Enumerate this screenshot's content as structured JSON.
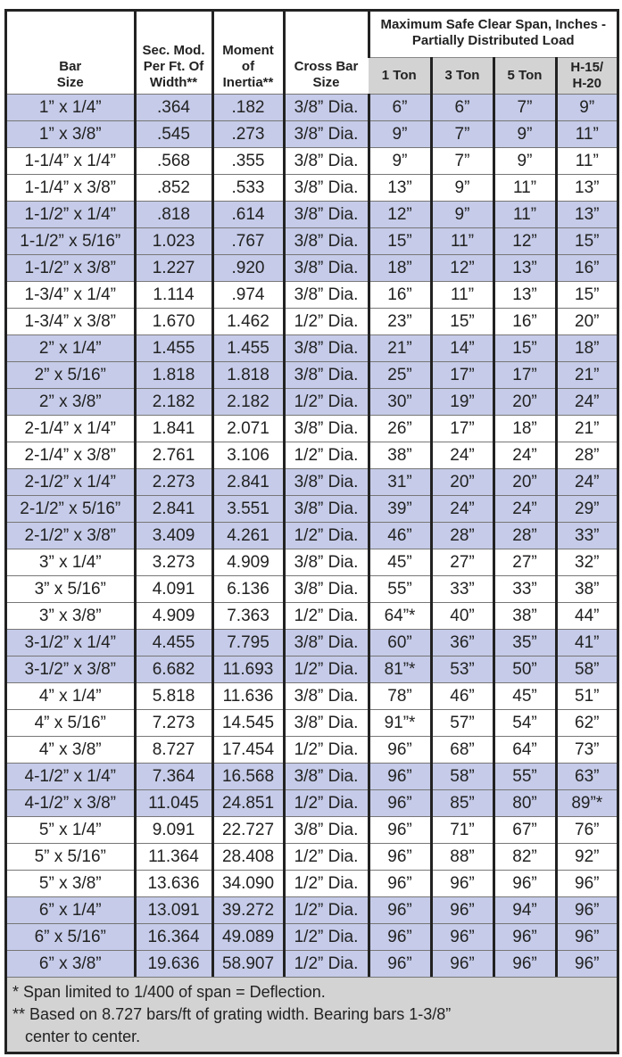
{
  "header": {
    "bar_size": "Bar Size",
    "sec_mod": "Sec. Mod. Per Ft. Of Width**",
    "moment": "Moment of Inertia**",
    "cross_bar": "Cross Bar Size",
    "span_group": "Maximum Safe Clear Span, Inches - Partially Distributed Load",
    "loads": [
      "1 Ton",
      "3 Ton",
      "5 Ton",
      "H-15/ H-20"
    ]
  },
  "shade_color": "#c5cbe8",
  "rows": [
    {
      "s": 1,
      "c": [
        "1” x 1/4”",
        ".364",
        ".182",
        "3/8” Dia.",
        "6”",
        "6”",
        "7”",
        "9”"
      ]
    },
    {
      "s": 1,
      "c": [
        "1” x 3/8”",
        ".545",
        ".273",
        "3/8” Dia.",
        "9”",
        "7”",
        "9”",
        "11”"
      ]
    },
    {
      "s": 0,
      "c": [
        "1-1/4” x 1/4”",
        ".568",
        ".355",
        "3/8” Dia.",
        "9”",
        "7”",
        "9”",
        "11”"
      ]
    },
    {
      "s": 0,
      "c": [
        "1-1/4” x 3/8”",
        ".852",
        ".533",
        "3/8” Dia.",
        "13”",
        "9”",
        "11”",
        "13”"
      ]
    },
    {
      "s": 1,
      "c": [
        "1-1/2” x 1/4”",
        ".818",
        ".614",
        "3/8” Dia.",
        "12”",
        "9”",
        "11”",
        "13”"
      ]
    },
    {
      "s": 1,
      "c": [
        "1-1/2” x 5/16”",
        "1.023",
        ".767",
        "3/8” Dia.",
        "15”",
        "11”",
        "12”",
        "15”"
      ]
    },
    {
      "s": 1,
      "c": [
        "1-1/2” x 3/8”",
        "1.227",
        ".920",
        "3/8” Dia.",
        "18”",
        "12”",
        "13”",
        "16”"
      ]
    },
    {
      "s": 0,
      "c": [
        "1-3/4” x 1/4”",
        "1.114",
        ".974",
        "3/8” Dia.",
        "16”",
        "11”",
        "13”",
        "15”"
      ]
    },
    {
      "s": 0,
      "c": [
        "1-3/4” x 3/8”",
        "1.670",
        "1.462",
        "1/2” Dia.",
        "23”",
        "15”",
        "16”",
        "20”"
      ]
    },
    {
      "s": 1,
      "c": [
        "2” x 1/4”",
        "1.455",
        "1.455",
        "3/8” Dia.",
        "21”",
        "14”",
        "15”",
        "18”"
      ]
    },
    {
      "s": 1,
      "c": [
        "2” x 5/16”",
        "1.818",
        "1.818",
        "3/8” Dia.",
        "25”",
        "17”",
        "17”",
        "21”"
      ]
    },
    {
      "s": 1,
      "c": [
        "2” x 3/8”",
        "2.182",
        "2.182",
        "1/2” Dia.",
        "30”",
        "19”",
        "20”",
        "24”"
      ]
    },
    {
      "s": 0,
      "c": [
        "2-1/4” x 1/4”",
        "1.841",
        "2.071",
        "3/8” Dia.",
        "26”",
        "17”",
        "18”",
        "21”"
      ]
    },
    {
      "s": 0,
      "c": [
        "2-1/4” x 3/8”",
        "2.761",
        "3.106",
        "1/2” Dia.",
        "38”",
        "24”",
        "24”",
        "28”"
      ]
    },
    {
      "s": 1,
      "c": [
        "2-1/2” x 1/4”",
        "2.273",
        "2.841",
        "3/8” Dia.",
        "31”",
        "20”",
        "20”",
        "24”"
      ]
    },
    {
      "s": 1,
      "c": [
        "2-1/2” x 5/16”",
        "2.841",
        "3.551",
        "3/8” Dia.",
        "39”",
        "24”",
        "24”",
        "29”"
      ]
    },
    {
      "s": 1,
      "c": [
        "2-1/2” x 3/8”",
        "3.409",
        "4.261",
        "1/2” Dia.",
        "46”",
        "28”",
        "28”",
        "33”"
      ]
    },
    {
      "s": 0,
      "c": [
        "3” x 1/4”",
        "3.273",
        "4.909",
        "3/8” Dia.",
        "45”",
        "27”",
        "27”",
        "32”"
      ]
    },
    {
      "s": 0,
      "c": [
        "3” x 5/16”",
        "4.091",
        "6.136",
        "3/8” Dia.",
        "55”",
        "33”",
        "33”",
        "38”"
      ]
    },
    {
      "s": 0,
      "c": [
        "3” x 3/8”",
        "4.909",
        "7.363",
        "1/2” Dia.",
        "64”*",
        "40”",
        "38”",
        "44”"
      ]
    },
    {
      "s": 1,
      "c": [
        "3-1/2” x 1/4”",
        "4.455",
        "7.795",
        "3/8” Dia.",
        "60”",
        "36”",
        "35”",
        "41”"
      ]
    },
    {
      "s": 1,
      "c": [
        "3-1/2” x 3/8”",
        "6.682",
        "11.693",
        "1/2” Dia.",
        "81”*",
        "53”",
        "50”",
        "58”"
      ]
    },
    {
      "s": 0,
      "c": [
        "4” x 1/4”",
        "5.818",
        "11.636",
        "3/8” Dia.",
        "78”",
        "46”",
        "45”",
        "51”"
      ]
    },
    {
      "s": 0,
      "c": [
        "4” x 5/16”",
        "7.273",
        "14.545",
        "3/8” Dia.",
        "91”*",
        "57”",
        "54”",
        "62”"
      ]
    },
    {
      "s": 0,
      "c": [
        "4” x 3/8”",
        "8.727",
        "17.454",
        "1/2” Dia.",
        "96”",
        "68”",
        "64”",
        "73”"
      ]
    },
    {
      "s": 1,
      "c": [
        "4-1/2” x 1/4”",
        "7.364",
        "16.568",
        "3/8” Dia.",
        "96”",
        "58”",
        "55”",
        "63”"
      ]
    },
    {
      "s": 1,
      "c": [
        "4-1/2” x 3/8”",
        "11.045",
        "24.851",
        "1/2” Dia.",
        "96”",
        "85”",
        "80”",
        "89”*"
      ]
    },
    {
      "s": 0,
      "c": [
        "5” x 1/4”",
        "9.091",
        "22.727",
        "3/8” Dia.",
        "96”",
        "71”",
        "67”",
        "76”"
      ]
    },
    {
      "s": 0,
      "c": [
        "5” x 5/16”",
        "11.364",
        "28.408",
        "1/2” Dia.",
        "96”",
        "88”",
        "82”",
        "92”"
      ]
    },
    {
      "s": 0,
      "c": [
        "5” x 3/8”",
        "13.636",
        "34.090",
        "1/2” Dia.",
        "96”",
        "96”",
        "96”",
        "96”"
      ]
    },
    {
      "s": 1,
      "c": [
        "6” x 1/4”",
        "13.091",
        "39.272",
        "1/2” Dia.",
        "96”",
        "96”",
        "94”",
        "96”"
      ]
    },
    {
      "s": 1,
      "c": [
        "6” x 5/16”",
        "16.364",
        "49.089",
        "1/2” Dia.",
        "96”",
        "96”",
        "96”",
        "96”"
      ]
    },
    {
      "s": 1,
      "c": [
        "6” x 3/8”",
        "19.636",
        "58.907",
        "1/2” Dia.",
        "96”",
        "96”",
        "96”",
        "96”"
      ]
    }
  ],
  "footnotes": [
    "*  Span limited to 1/400 of span = Deflection.",
    "** Based on 8.727 bars/ft of grating width.  Bearing bars 1-3/8”",
    "center to center."
  ]
}
